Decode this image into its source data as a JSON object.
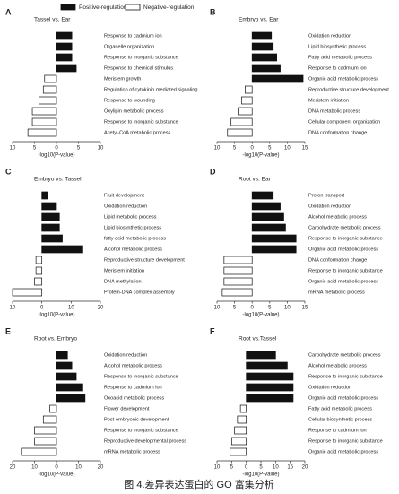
{
  "legend": [
    {
      "name": "Positive-regulation",
      "color": "#111111"
    },
    {
      "name": "Negative-regulation",
      "color": "#ffffff"
    }
  ],
  "caption": "图 4.差异表达蛋白的 GO 富集分析",
  "chart_data": [
    {
      "type": "bar",
      "panel": "A",
      "title": "Tassel vs. Ear",
      "xlabel": "-log10(P-value)",
      "categories": [
        "Response to cadmium ion",
        "Organelle organization",
        "Response to inorganic substance",
        "Response to chemical stimulus",
        "Meristem growth",
        "Regulation of cytokinin mediated signaling",
        "Response to wounding",
        "Oxylipin metabolic process",
        "Response to inorganic substance",
        "Acetyl-CoA metabolic process"
      ],
      "values": [
        3.5,
        3.5,
        3.5,
        4.5,
        -2.7,
        -3,
        -4,
        -5.5,
        -5.5,
        -6.5
      ],
      "xlim": [
        -10,
        10
      ],
      "xticks": [
        {
          "value": -10,
          "label": "10"
        },
        {
          "value": -5,
          "label": "5"
        },
        0,
        5,
        10
      ]
    },
    {
      "type": "bar",
      "panel": "B",
      "title": "Embryo vs. Ear",
      "xlabel": "-log10(P-value)",
      "categories": [
        "Oxidation reduction",
        "Lipid biosynthetic process",
        "Fatty acid metabolic process",
        "Response to cadmium ion",
        "Organic acid metabolic process",
        "Reproductive structure development",
        "Meristem initiation",
        "DNA metabolic process",
        "Cellular component organization",
        "DNA conformation change"
      ],
      "values": [
        5.5,
        6,
        7,
        8,
        14.5,
        -2,
        -3,
        -4,
        -6,
        -7
      ],
      "xlim": [
        -10,
        15
      ],
      "xticks": [
        {
          "value": -10,
          "label": "10"
        },
        {
          "value": -5,
          "label": "5"
        },
        0,
        5,
        10,
        15
      ]
    },
    {
      "type": "bar",
      "panel": "C",
      "title": "Embryo vs. Tassel",
      "xlabel": "-log10(P-value)",
      "categories": [
        "Fruit development",
        "Oxidation reduction",
        "Lipid metabolic process",
        "Lipid biosynthetic process",
        "fatty acid metabolic process",
        "Alcohol metabolic process",
        "Reproductive structure development",
        "Meristem initiation",
        "DNA methylation",
        "Protein-DNA complex assembly"
      ],
      "values": [
        2,
        5,
        6,
        6,
        7,
        14,
        -2,
        -2,
        -2.5,
        -10
      ],
      "xlim": [
        -10,
        20
      ],
      "xticks": [
        {
          "value": -10,
          "label": "10"
        },
        0,
        10,
        20
      ]
    },
    {
      "type": "bar",
      "panel": "D",
      "title": "Root vs. Ear",
      "xlabel": "-log10(P-value)",
      "categories": [
        "Proton transport",
        "Oxidation reduction",
        "Alcohol metabolic process",
        "Carbohydrate metabolic process",
        "Response to inorganic substance",
        "Organic acid metabolic process",
        "DNA conformation change",
        "Response to inorganic substance",
        "Organic acid metabolic process",
        "mRNA metabolic process"
      ],
      "values": [
        6,
        8,
        9,
        9.5,
        12.5,
        12.5,
        -8,
        -8,
        -8,
        -8.5
      ],
      "xlim": [
        -10,
        15
      ],
      "xticks": [
        {
          "value": -10,
          "label": "10"
        },
        {
          "value": -5,
          "label": "5"
        },
        0,
        5,
        10,
        15
      ]
    },
    {
      "type": "bar",
      "panel": "E",
      "title": "Root vs. Embryo",
      "xlabel": "-log10(P-value)",
      "categories": [
        "Oxidation reduction",
        "Alcohol metabolic process",
        "Response to inorganic substance",
        "Response to cadmium ion",
        "Oxoacid metabolic process",
        "Flower development",
        "Post-embryonic development",
        "Response to inorganic substance",
        "Reproductive developmental process",
        "mRNA metabolic process"
      ],
      "values": [
        5,
        7,
        9,
        12,
        13,
        -3,
        -6,
        -10,
        -10,
        -16
      ],
      "xlim": [
        -20,
        20
      ],
      "xticks": [
        {
          "value": -20,
          "label": "20"
        },
        {
          "value": -10,
          "label": "10"
        },
        0,
        10,
        20
      ]
    },
    {
      "type": "bar",
      "panel": "F",
      "title": "Root vs.Tassel",
      "xlabel": "-log10(P-value)",
      "categories": [
        "Carbohydrate metabolic process",
        "Alcohol metabolic process",
        "Response to inorganic substance",
        "Oxidation reduction",
        "Organic acid metabolic process",
        "Fatty acid metabolic process",
        "Cellular biosynthetic process",
        "Response to cadmium ion",
        "Response to inorganic substance",
        "Organic acid metabolic process"
      ],
      "values": [
        10,
        14,
        16,
        16,
        16,
        -2,
        -3,
        -4,
        -5,
        -5.5
      ],
      "xlim": [
        -10,
        20
      ],
      "xticks": [
        {
          "value": -10,
          "label": "10"
        },
        {
          "value": -5,
          "label": "5"
        },
        0,
        5,
        10,
        15,
        20
      ]
    }
  ]
}
